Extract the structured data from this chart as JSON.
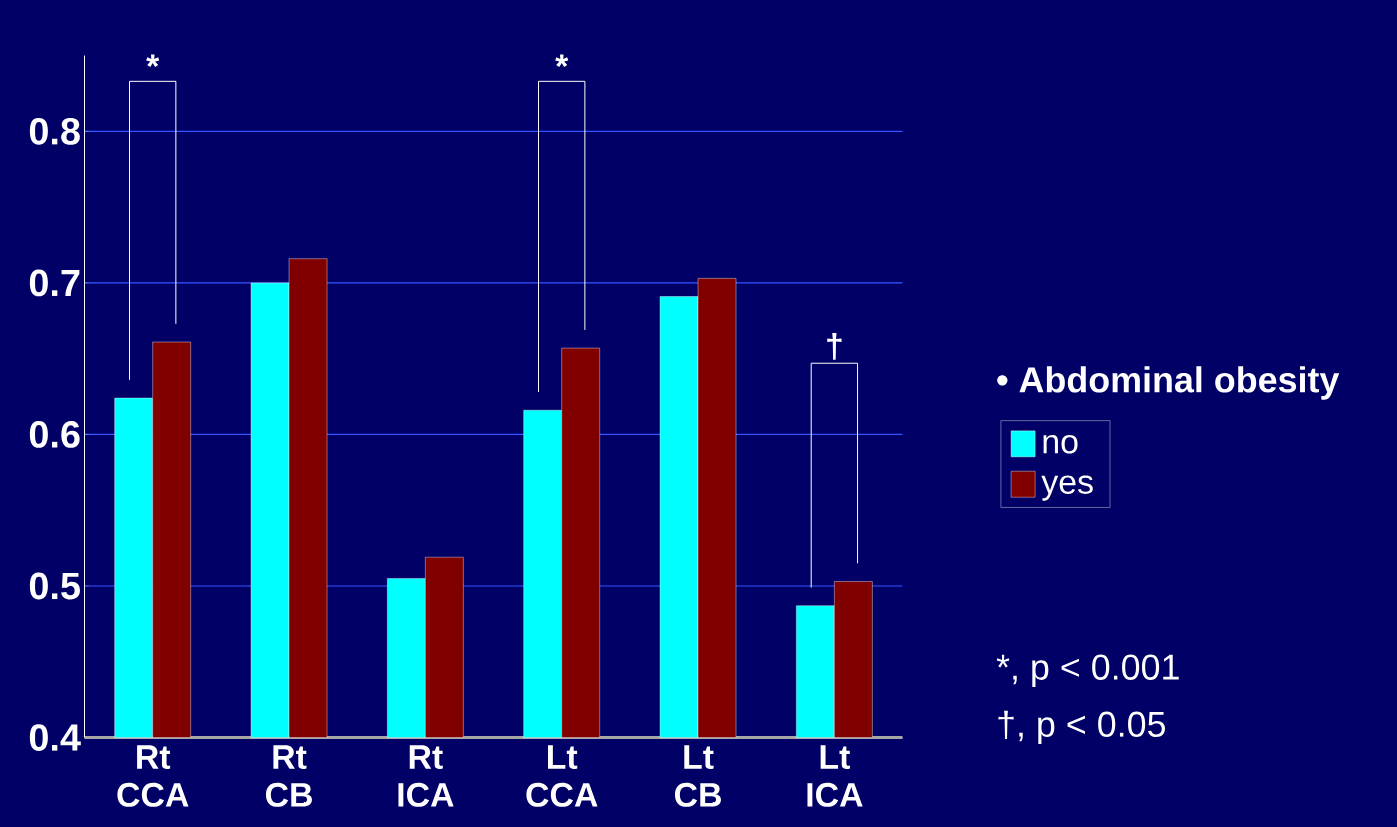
{
  "chart_data": {
    "type": "bar",
    "categories": [
      "Rt CCA",
      "Rt CB",
      "Rt ICA",
      "Lt CCA",
      "Lt CB",
      "Lt ICA"
    ],
    "series": [
      {
        "name": "no",
        "color": "#00ffff",
        "values": [
          0.624,
          0.7,
          0.505,
          0.616,
          0.691,
          0.487
        ]
      },
      {
        "name": "yes",
        "color": "#800000",
        "values": [
          0.661,
          0.716,
          0.519,
          0.657,
          0.703,
          0.503
        ]
      }
    ],
    "ylim": [
      0.4,
      0.85
    ],
    "yticks": [
      0.4,
      0.5,
      0.6,
      0.7,
      0.8
    ],
    "grid": "y",
    "legend": "right",
    "legend_title": "• Abdominal obesity",
    "annotations": [
      "*",
      "*",
      "†",
      "*, p < 0.001",
      "†, p < 0.05"
    ]
  }
}
